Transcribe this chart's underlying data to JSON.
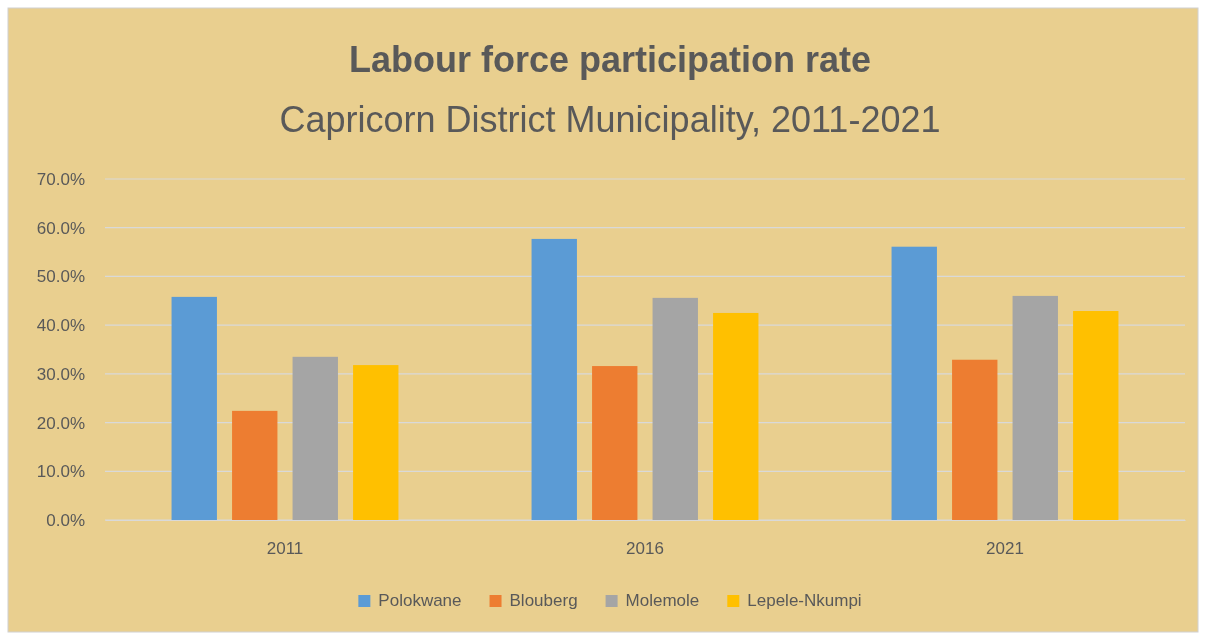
{
  "chart_data": {
    "type": "bar",
    "title": "Labour force participation rate",
    "subtitle": "Capricorn District Municipality, 2011-2021",
    "categories": [
      "2011",
      "2016",
      "2021"
    ],
    "series": [
      {
        "name": "Polokwane",
        "color": "#5b9bd5",
        "values": [
          45.8,
          57.7,
          56.1
        ]
      },
      {
        "name": "Blouberg",
        "color": "#ed7d31",
        "values": [
          22.4,
          31.6,
          32.9
        ]
      },
      {
        "name": "Molemole",
        "color": "#a5a5a5",
        "values": [
          33.5,
          45.6,
          46.0
        ]
      },
      {
        "name": "Lepele-Nkumpi",
        "color": "#ffc000",
        "values": [
          31.8,
          42.5,
          42.9
        ]
      }
    ],
    "ylim": [
      0,
      70
    ],
    "yticks": [
      {
        "value": 0,
        "label": "0.0%"
      },
      {
        "value": 10,
        "label": "10.0%"
      },
      {
        "value": 20,
        "label": "20.0%"
      },
      {
        "value": 30,
        "label": "30.0%"
      },
      {
        "value": 40,
        "label": "40.0%"
      },
      {
        "value": 50,
        "label": "50.0%"
      },
      {
        "value": 60,
        "label": "60.0%"
      },
      {
        "value": 70,
        "label": "70.0%"
      }
    ],
    "grid": "y",
    "legend": "bottom"
  }
}
